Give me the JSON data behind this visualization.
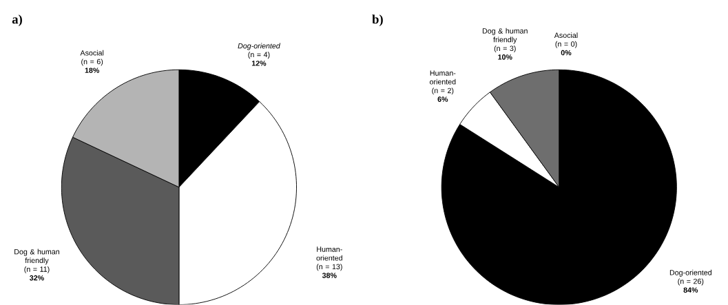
{
  "chart_data": [
    {
      "type": "pie",
      "title": "a)",
      "categories": [
        "*Dog-oriented* (n = 4)",
        "Human-oriented (n = 13)",
        "Dog & human friendly (n = 11)",
        "Asocial (n = 6)"
      ],
      "values": [
        12,
        38,
        32,
        18
      ],
      "value_labels": [
        "12%",
        "38%",
        "32%",
        "18%"
      ],
      "colors": [
        "#000000",
        "#ffffff",
        "#5a5a5a",
        "#b4b4b4"
      ]
    },
    {
      "type": "pie",
      "title": "b)",
      "categories": [
        "Dog-oriented (n = 26)",
        "Human-oriented (n = 2)",
        "Dog & human friendly (n = 3)",
        "Asocial (n = 0)"
      ],
      "values": [
        84,
        6,
        10,
        0
      ],
      "value_labels": [
        "84%",
        "6%",
        "10%",
        "0%"
      ],
      "colors": [
        "#000000",
        "#ffffff",
        "#6e6e6e",
        "#b4b4b4"
      ]
    }
  ]
}
